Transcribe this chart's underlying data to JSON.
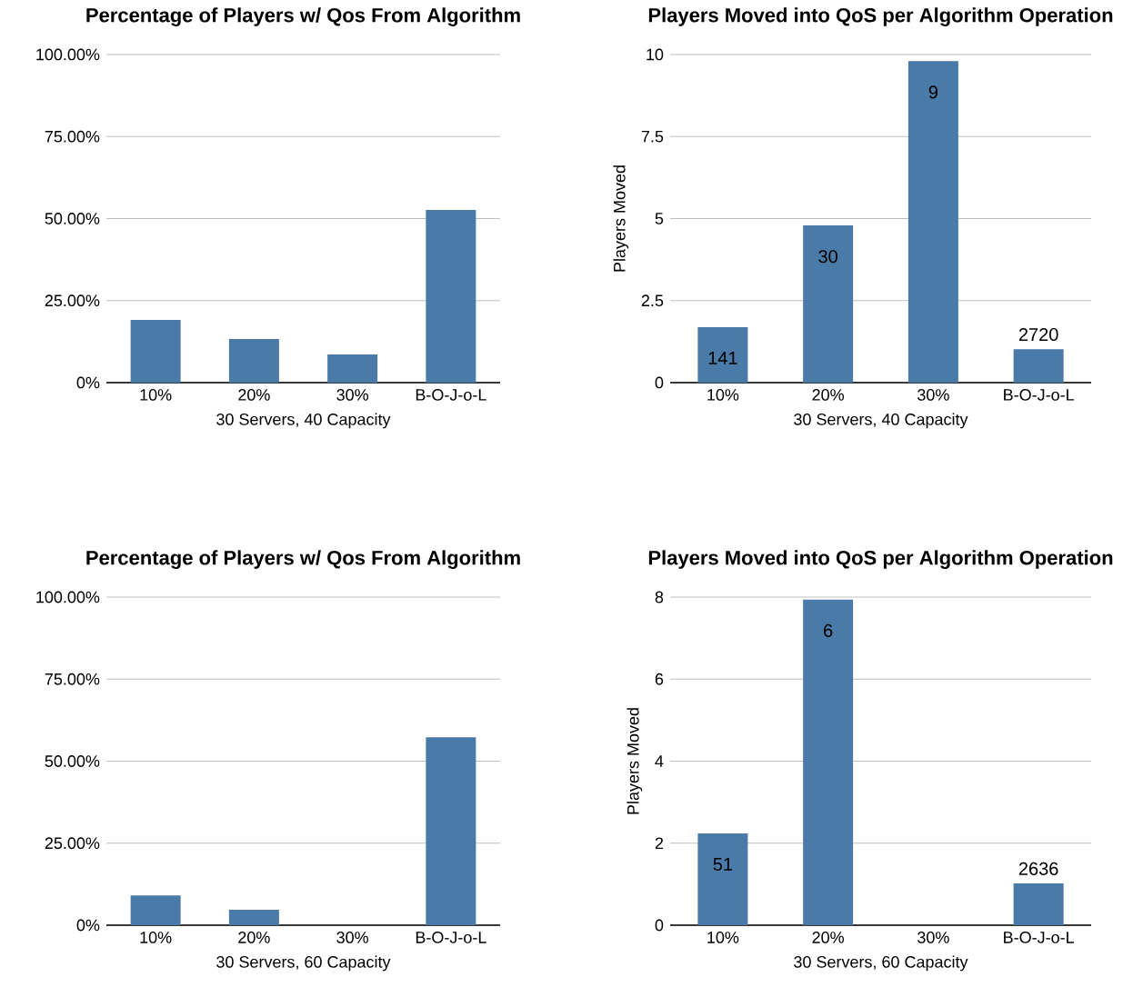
{
  "chart_data": [
    {
      "type": "bar",
      "title": "Percentage of Players w/ Qos From Algorithm",
      "xlabel": "30 Servers, 40 Capacity",
      "categories": [
        "10%",
        "20%",
        "30%",
        "B-O-J-o-L"
      ],
      "values": [
        19.1,
        13.3,
        8.6,
        52.6
      ],
      "color": "#4a7aa8",
      "ylim": [
        0,
        100
      ],
      "yticks": [
        {
          "value": 0,
          "label": "0%"
        },
        {
          "value": 25,
          "label": "25.00%"
        },
        {
          "value": 50,
          "label": "50.00%"
        },
        {
          "value": 75,
          "label": "75.00%"
        },
        {
          "value": 100,
          "label": "100.00%"
        }
      ],
      "grid": "y"
    },
    {
      "type": "bar",
      "title": "Players Moved into QoS per Algorithm Operation",
      "xlabel": "30 Servers, 40 Capacity",
      "ylabel": "Players Moved",
      "categories": [
        "10%",
        "20%",
        "30%",
        "B-O-J-o-L"
      ],
      "values": [
        1.69,
        4.79,
        9.8,
        1.02
      ],
      "annotations": [
        {
          "text": "141",
          "x": "10%",
          "y": 1.69
        },
        {
          "text": "30",
          "x": "20%",
          "y": 4.79
        },
        {
          "text": "9",
          "x": "30%",
          "y": 9.8
        },
        {
          "text": "2720",
          "x": "B-O-J-o-L",
          "y": 1.02
        }
      ],
      "color": "#4a7aa8",
      "ylim": [
        0,
        10
      ],
      "yticks": [
        0,
        2.5,
        5,
        7.5,
        10
      ],
      "grid": "y"
    },
    {
      "type": "bar",
      "title": "Percentage of Players w/ Qos From Algorithm",
      "xlabel": "30 Servers, 60 Capacity",
      "categories": [
        "10%",
        "20%",
        "30%",
        "B-O-J-o-L"
      ],
      "values": [
        9.1,
        4.7,
        null,
        57.3
      ],
      "color": "#4a7aa8",
      "ylim": [
        0,
        100
      ],
      "yticks": [
        {
          "value": 0,
          "label": "0%"
        },
        {
          "value": 25,
          "label": "25.00%"
        },
        {
          "value": 50,
          "label": "50.00%"
        },
        {
          "value": 75,
          "label": "75.00%"
        },
        {
          "value": 100,
          "label": "100.00%"
        }
      ],
      "grid": "y"
    },
    {
      "type": "bar",
      "title": "Players Moved into QoS per Algorithm Operation",
      "xlabel": "30 Servers, 60 Capacity",
      "ylabel": "Players Moved",
      "categories": [
        "10%",
        "20%",
        "30%",
        "B-O-J-o-L"
      ],
      "values": [
        2.24,
        7.94,
        null,
        1.02
      ],
      "annotations": [
        {
          "text": "51",
          "x": "10%",
          "y": 2.24
        },
        {
          "text": "6",
          "x": "20%",
          "y": 7.94
        },
        {
          "text": "2636",
          "x": "B-O-J-o-L",
          "y": 1.02
        }
      ],
      "color": "#4a7aa8",
      "ylim": [
        0,
        8
      ],
      "yticks": [
        0,
        2,
        4,
        6,
        8
      ],
      "grid": "y"
    }
  ]
}
